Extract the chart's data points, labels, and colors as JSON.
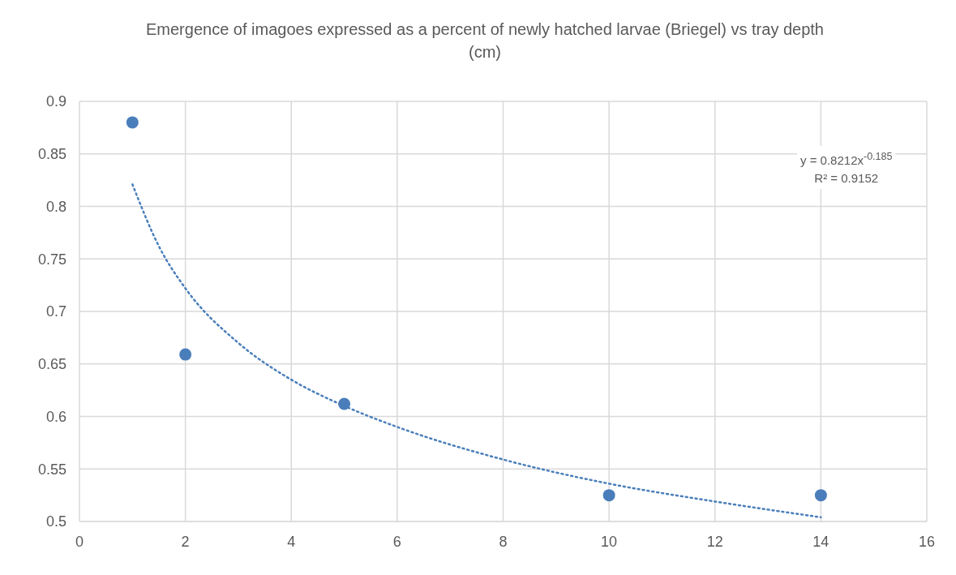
{
  "chart_data": {
    "type": "scatter",
    "title": "Emergence of imagoes expressed as a percent of newly hatched larvae  (Briegel) vs tray depth (cm)",
    "x": [
      1,
      2,
      5,
      10,
      14
    ],
    "series": [
      {
        "color": "#4a7ebb",
        "values": [
          0.88,
          0.659,
          0.612,
          0.525,
          0.525
        ],
        "marker": "circle"
      },
      {
        "type": "line",
        "color": "#4a7ebb",
        "line_style": "dotted",
        "marker": "none",
        "x": [
          1,
          1.5,
          2,
          3,
          4,
          5,
          6,
          8,
          10,
          12,
          14
        ],
        "values": [
          0.821,
          0.762,
          0.722,
          0.67,
          0.635,
          0.61,
          0.59,
          0.559,
          0.536,
          0.519,
          0.504
        ]
      }
    ],
    "xlim": [
      0,
      16
    ],
    "xticks": [
      0,
      2,
      4,
      6,
      8,
      10,
      12,
      14,
      16
    ],
    "ylim": [
      0.5,
      0.9
    ],
    "yticks": [
      0.5,
      0.55,
      0.6,
      0.65,
      0.7,
      0.75,
      0.8,
      0.85,
      0.9
    ],
    "grid": true,
    "annotations": [
      "y = 0.8212x$^{-0.185}$",
      "R² = 0.9152"
    ]
  }
}
